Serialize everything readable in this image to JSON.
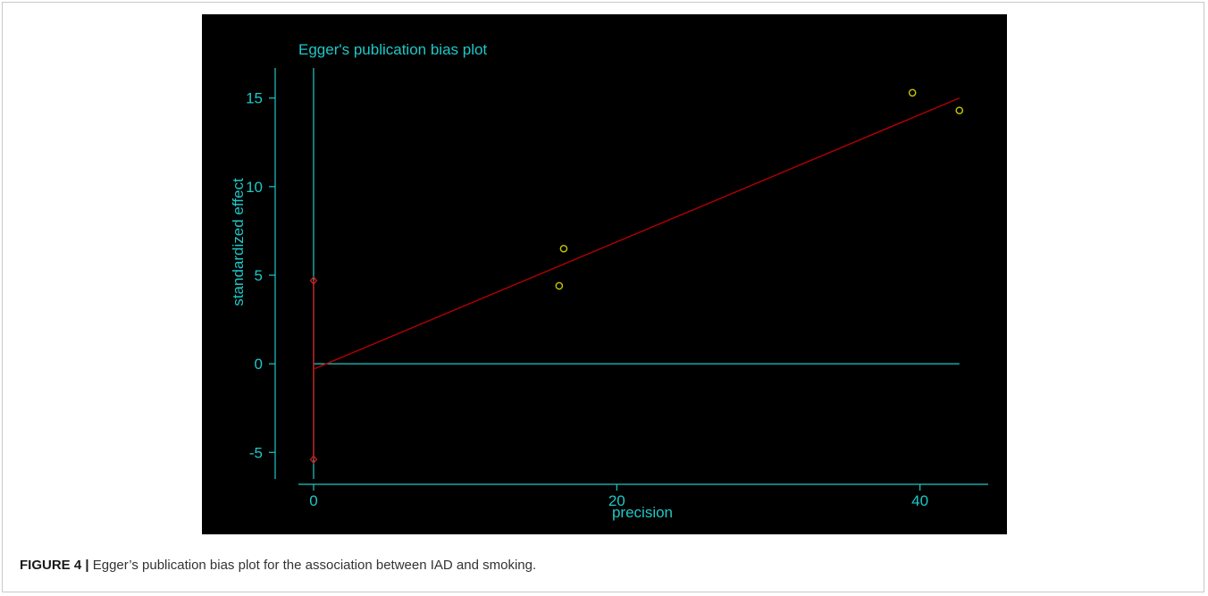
{
  "caption": {
    "label": "FIGURE 4 |",
    "text": "Egger’s publication bias plot for the association between IAD and smoking."
  },
  "chart_data": {
    "type": "scatter",
    "title": "Egger's publication bias plot",
    "xlabel": "precision",
    "ylabel": "standardized effect",
    "xlim": [
      -1,
      44.5
    ],
    "ylim": [
      -6.5,
      16.5
    ],
    "xticks": [
      0,
      20,
      40
    ],
    "xtick_labels": [
      "0",
      "20",
      "40"
    ],
    "yticks": [
      -5,
      0,
      5,
      10,
      15
    ],
    "ytick_labels": [
      "-5",
      "0",
      "5",
      "10",
      "15"
    ],
    "points": [
      {
        "x": 16.2,
        "y": 4.4
      },
      {
        "x": 16.5,
        "y": 6.5
      },
      {
        "x": 39.5,
        "y": 15.3
      },
      {
        "x": 42.6,
        "y": 14.3
      }
    ],
    "regression_line": {
      "x": [
        0,
        42.6
      ],
      "y": [
        -0.3,
        15.0
      ]
    },
    "intercept_ci": {
      "x": 0,
      "lower": -5.4,
      "upper": 4.7
    },
    "reference_line_y": 0,
    "colors": {
      "background": "#000000",
      "axis": "#1ec8c8",
      "points": "#c8c800",
      "regression": "#b40000",
      "ci": "#c81e1e"
    },
    "grid": false,
    "legend": "none"
  }
}
